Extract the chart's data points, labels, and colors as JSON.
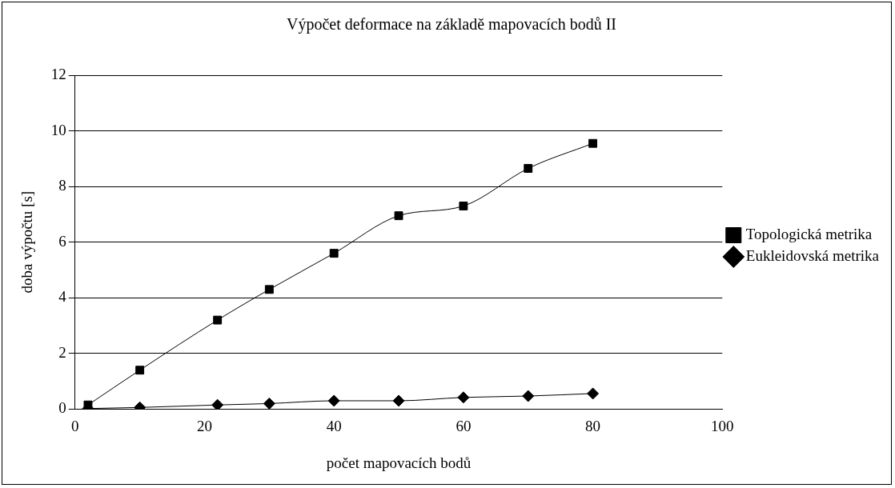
{
  "chart_data": {
    "type": "line",
    "title": "Výpočet deformace na základě mapovacích bodů II",
    "xlabel": "počet mapovacích bodů",
    "ylabel": "doba výpočtu [s]",
    "x": [
      2,
      10,
      22,
      30,
      40,
      50,
      60,
      70,
      80
    ],
    "series": [
      {
        "name": "Eukleidovská metrika",
        "color": "#000000",
        "marker": "diamond",
        "values": [
          0.02,
          0.06,
          0.15,
          0.2,
          0.3,
          0.3,
          0.42,
          0.47,
          0.56
        ]
      },
      {
        "name": "Topologická metrika",
        "color": "#000000",
        "marker": "square",
        "values": [
          0.15,
          1.4,
          3.2,
          4.3,
          5.6,
          6.95,
          7.3,
          8.65,
          9.55
        ]
      }
    ],
    "xlim": [
      0,
      100
    ],
    "xticks": [
      0,
      20,
      40,
      60,
      80,
      100
    ],
    "ylim": [
      0,
      12
    ],
    "yticks": [
      0,
      2,
      4,
      6,
      8,
      10,
      12
    ],
    "grid": "y",
    "legend": "right",
    "line_style": "solid"
  }
}
